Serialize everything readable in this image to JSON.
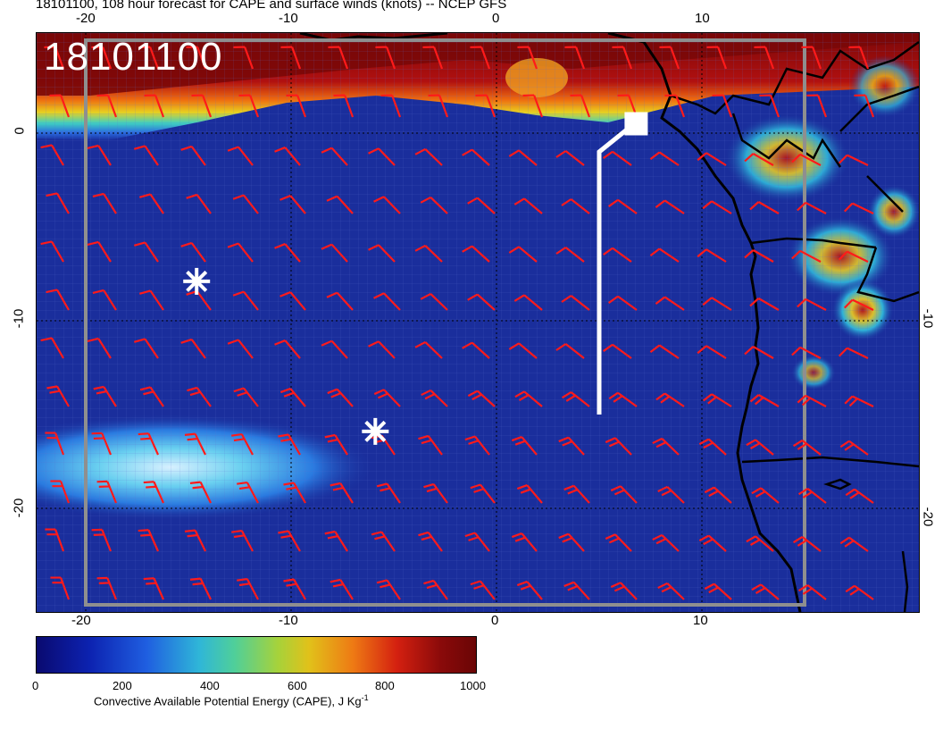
{
  "title": "18101100, 108 hour forecast for CAPE and surface winds (knots) -- NCEP GFS",
  "date_stamp": "18101100",
  "map": {
    "lon_ticks": [
      "-20",
      "-10",
      "0",
      "10"
    ],
    "lon_ticks_bottom": [
      "-20",
      "-10",
      "0",
      "10"
    ],
    "lat_ticks_left": [
      "0",
      "-10",
      "-20"
    ],
    "lat_ticks_right": [
      "-10",
      "-20"
    ],
    "markers": [
      {
        "name": "asterisk",
        "lon": -14.6,
        "lat": -7.9
      },
      {
        "name": "asterisk",
        "lon": -5.9,
        "lat": -15.9
      }
    ],
    "track": [
      {
        "lon": 5.0,
        "lat": -15.0
      },
      {
        "lon": 5.0,
        "lat": -1.0
      },
      {
        "lon": 6.7,
        "lat": 0.5
      }
    ],
    "track_end_marker": {
      "lon": 6.8,
      "lat": 0.5
    },
    "colors": {
      "ocean_low_cape": "#1a2e9c",
      "high_cape": "#8a0a0a",
      "wind_barbs": "#ff1a1a",
      "coastline": "#000000",
      "markers": "#ffffff",
      "grid_lines": "#8f8f8f"
    }
  },
  "colorbar": {
    "ticks": [
      "0",
      "200",
      "400",
      "600",
      "800",
      "1000"
    ],
    "min": 0,
    "max": 1000,
    "caption": "Convective Available Potential Energy (CAPE), J Kg",
    "caption_sup": "-1"
  }
}
